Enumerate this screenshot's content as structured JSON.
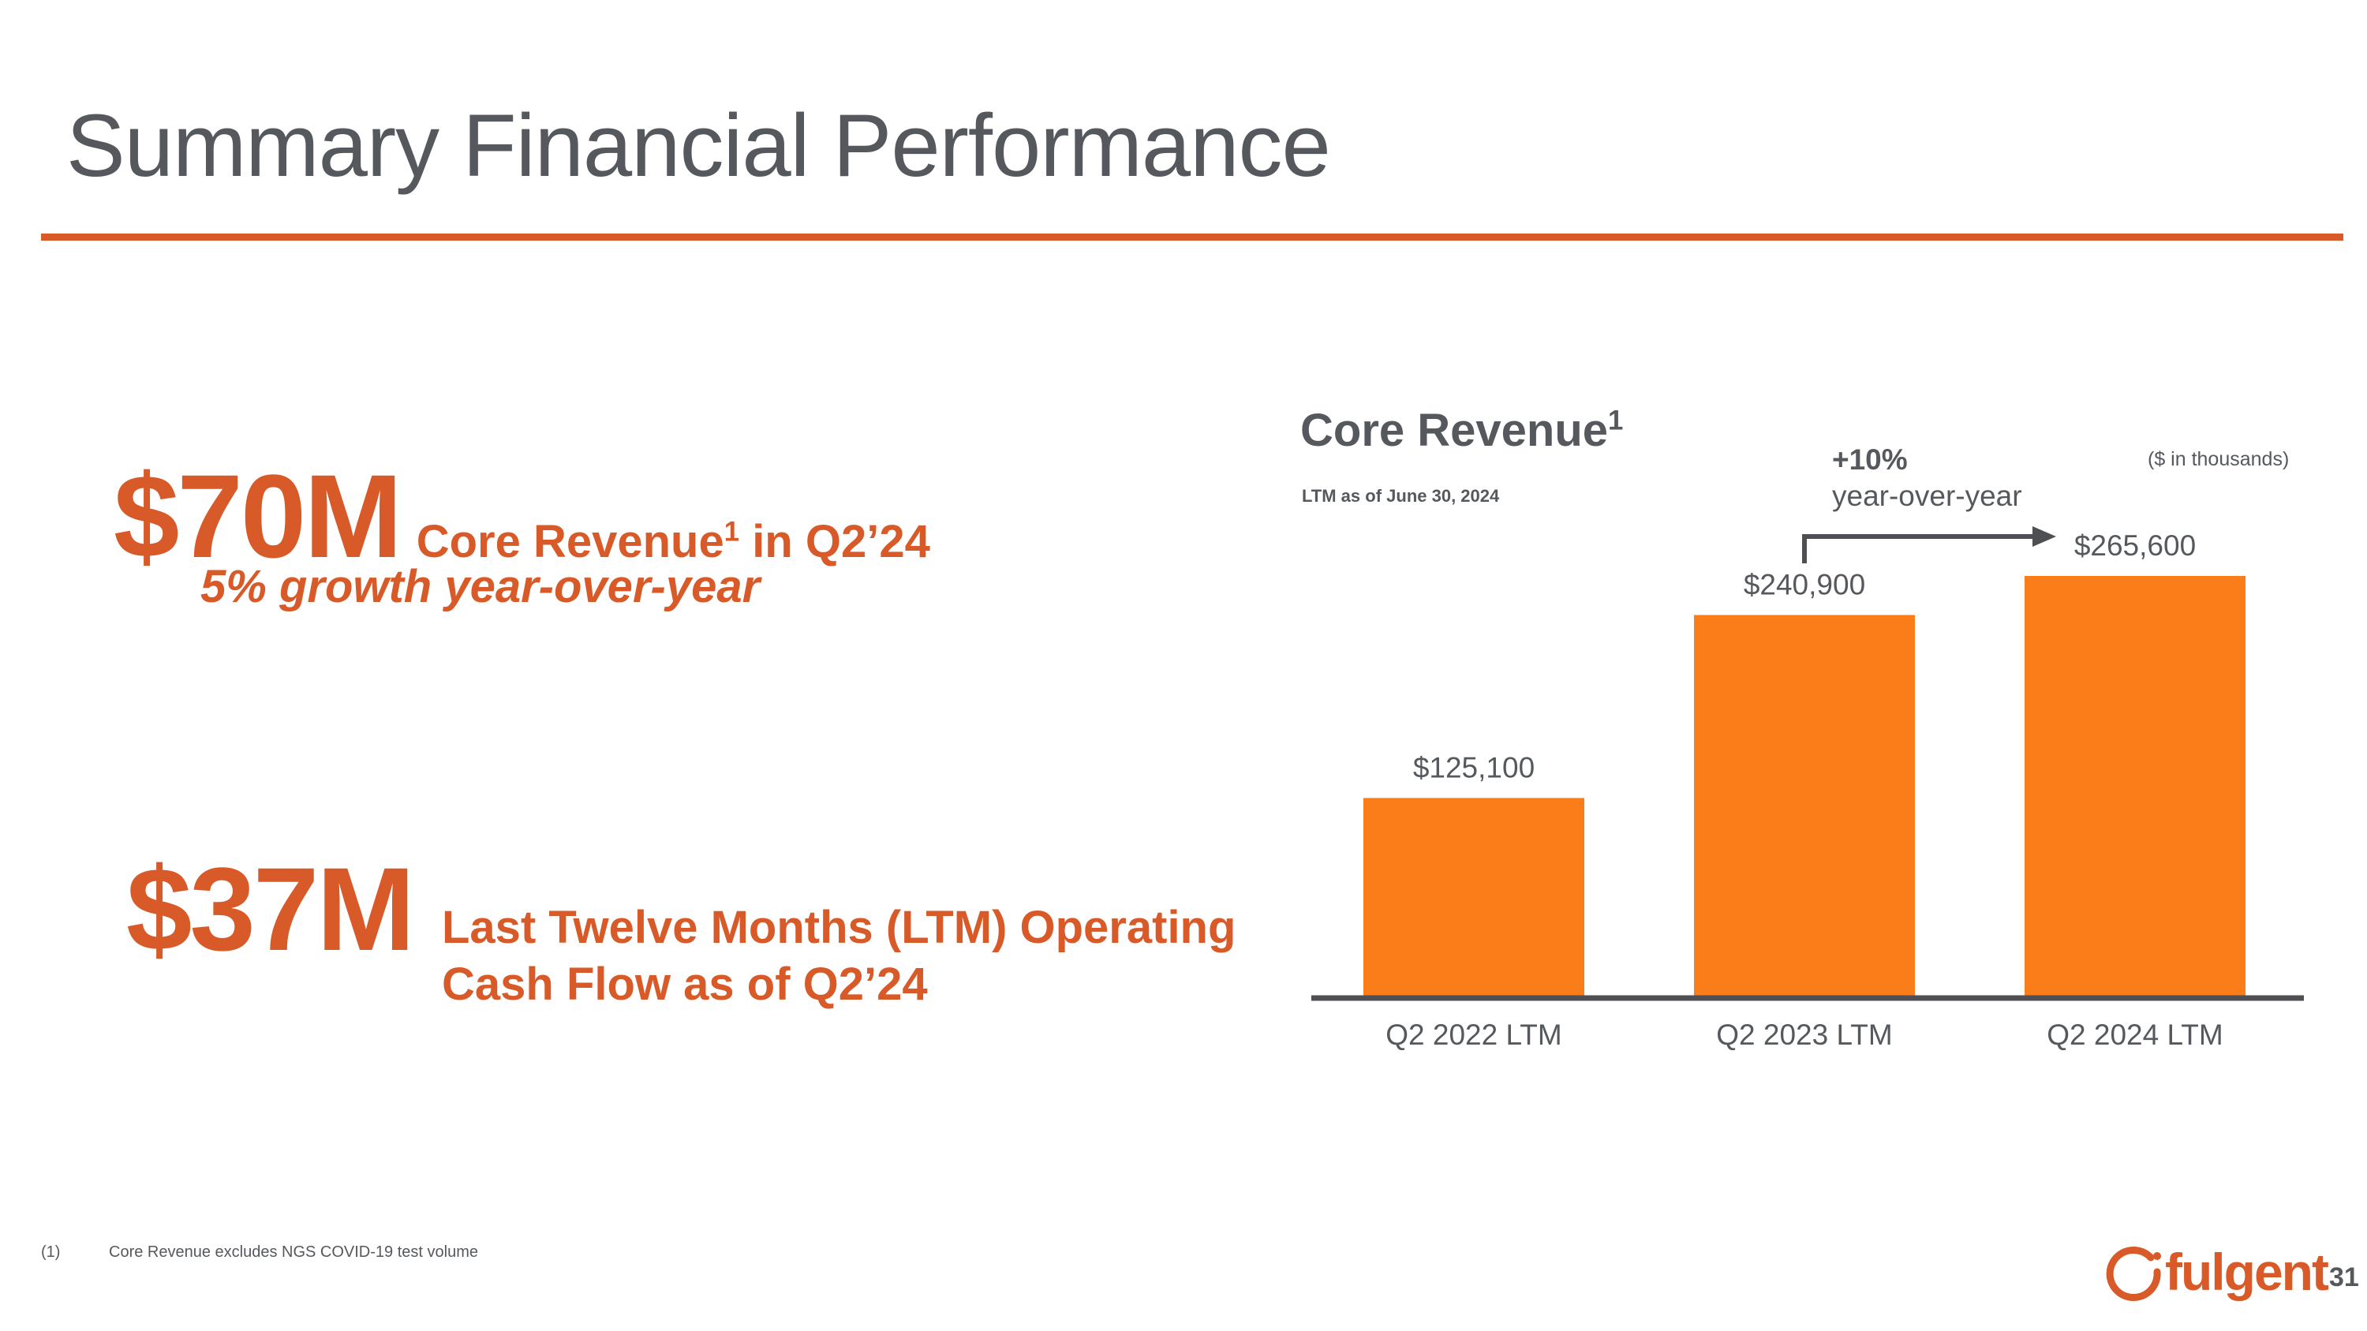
{
  "slide": {
    "title": "Summary Financial Performance",
    "page_number": "31"
  },
  "stats": {
    "revenue": {
      "value": "$70M",
      "label": "Core Revenue",
      "label_sup": "1",
      "label_suffix": " in Q2’24",
      "growth": "5% growth year-over-year"
    },
    "cash_flow": {
      "value": "$37M",
      "label_line1": "Last Twelve Months (LTM) Operating",
      "label_line2": "Cash Flow as of Q2’24"
    }
  },
  "chart_data": {
    "type": "bar",
    "title": "Core Revenue",
    "title_sup": "1",
    "subtitle": "LTM as of June 30, 2024",
    "units_note": "($ in thousands)",
    "categories": [
      "Q2 2022 LTM",
      "Q2 2023 LTM",
      "Q2 2024 LTM"
    ],
    "values": [
      125100,
      240900,
      265600
    ],
    "data_labels": [
      "$125,100",
      "$240,900",
      "$265,600"
    ],
    "ylim": [
      0,
      265600
    ],
    "xlabel": "",
    "ylabel": "",
    "grid": false,
    "annotation": {
      "percent": "+10%",
      "text": "year-over-year",
      "from_category": "Q2 2023 LTM",
      "to_category": "Q2 2024 LTM"
    },
    "colors": {
      "bar": "#fa7d19",
      "axis": "#4d4f52",
      "text": "#55595e"
    }
  },
  "footnote": {
    "marker": "(1)",
    "text": "Core Revenue excludes NGS COVID-19 test volume"
  },
  "logo": {
    "text": "fulgent"
  },
  "colors": {
    "accent": "#d85a28",
    "text": "#55595e"
  }
}
